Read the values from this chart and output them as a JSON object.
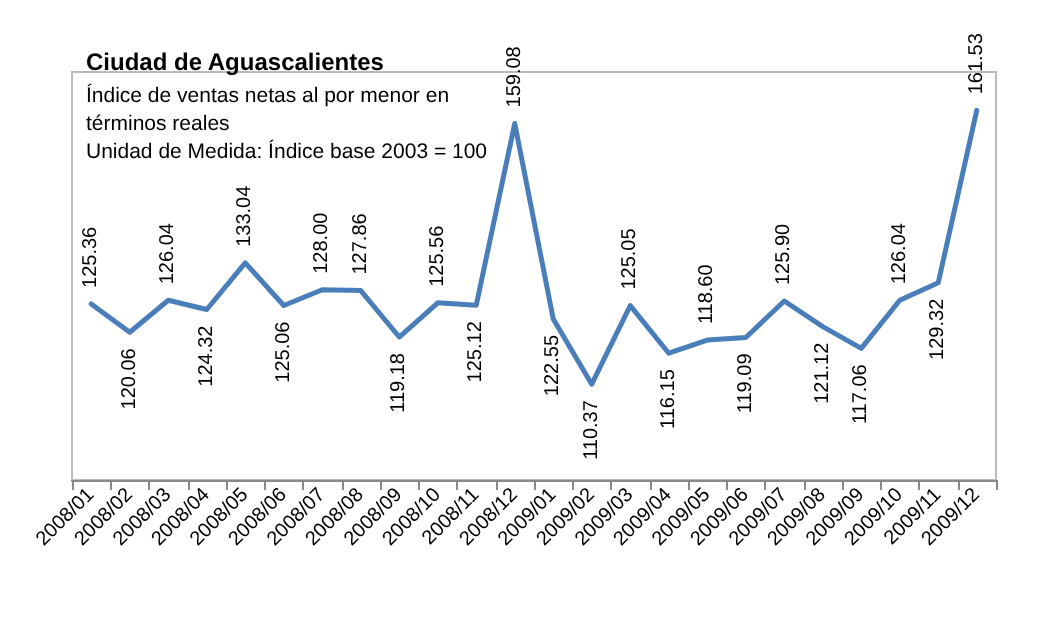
{
  "chart_data": {
    "type": "line",
    "title": "Ciudad de Aguascalientes",
    "subtitle": "Índice de ventas netas al por menor en términos reales",
    "annotations": [
      "Unidad de Medida: Índice base 2003 = 100"
    ],
    "categories": [
      "2008/01",
      "2008/02",
      "2008/03",
      "2008/04",
      "2008/05",
      "2008/06",
      "2008/07",
      "2008/08",
      "2008/09",
      "2008/10",
      "2008/11",
      "2008/12",
      "2009/01",
      "2009/02",
      "2009/03",
      "2009/04",
      "2009/05",
      "2009/06",
      "2009/07",
      "2009/08",
      "2009/09",
      "2009/10",
      "2009/11",
      "2009/12"
    ],
    "series": [
      {
        "color": "#4a7ebb",
        "values": [
          125.36,
          120.06,
          126.04,
          124.32,
          133.04,
          125.06,
          128.0,
          127.86,
          119.18,
          125.56,
          125.12,
          159.08,
          122.55,
          110.37,
          125.05,
          116.15,
          118.6,
          119.09,
          125.9,
          121.12,
          117.06,
          126.04,
          129.32,
          161.53
        ],
        "value_labels": [
          "125.36",
          "120.06",
          "126.04",
          "124.32",
          "133.04",
          "125.06",
          "128.00",
          "127.86",
          "119.18",
          "125.56",
          "125.12",
          "159.08",
          "122.55",
          "110.37",
          "125.05",
          "116.15",
          "118.60",
          "119.09",
          "125.90",
          "121.12",
          "117.06",
          "126.04",
          "129.32",
          "161.53"
        ]
      }
    ],
    "grid": false,
    "marker": "none",
    "line_style": "solid"
  }
}
